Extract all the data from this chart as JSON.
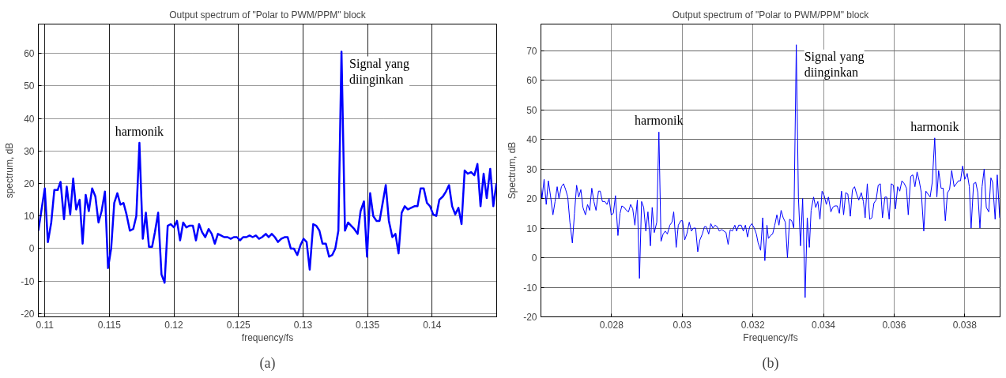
{
  "chart_data": [
    {
      "type": "line",
      "title": "Output spectrum of \"Polar to PWM/PPM\" block",
      "xlabel": "frequency/fs",
      "ylabel": "spectrum, dB",
      "xlim": [
        0.1095,
        0.145
      ],
      "ylim": [
        -21,
        69
      ],
      "xticks": [
        0.11,
        0.115,
        0.12,
        0.125,
        0.13,
        0.135,
        0.14
      ],
      "yticks": [
        -20,
        -10,
        0,
        10,
        20,
        30,
        40,
        50,
        60
      ],
      "grid": true,
      "marker": "none",
      "line_style": "solid",
      "annotations": [
        {
          "text": "harmonik",
          "x": 0.11733,
          "y": 32.5
        },
        {
          "text": "Signal yang\ndiinginkan",
          "x": 0.13298,
          "y": 60.5
        },
        "(a)"
      ],
      "series": [
        {
          "color": "#0000ff",
          "x": [
            0.1095,
            0.11,
            0.11024,
            0.1105,
            0.11074,
            0.111,
            0.11122,
            0.11149,
            0.1117,
            0.11197,
            0.1122,
            0.11243,
            0.1127,
            0.11293,
            0.11317,
            0.11341,
            0.11367,
            0.11392,
            0.11416,
            0.1144,
            0.11466,
            0.1149,
            0.11514,
            0.11538,
            0.11562,
            0.11586,
            0.1161,
            0.11633,
            0.11659,
            0.11685,
            0.11709,
            0.11733,
            0.11759,
            0.11783,
            0.11807,
            0.11831,
            0.11853,
            0.11878,
            0.11904,
            0.11928,
            0.11952,
            0.11976,
            0.12,
            0.12024,
            0.12048,
            0.12072,
            0.12096,
            0.1212,
            0.12147,
            0.12171,
            0.12195,
            0.12219,
            0.12243,
            0.12269,
            0.12293,
            0.12317,
            0.12341,
            0.12365,
            0.12389,
            0.12416,
            0.1244,
            0.12464,
            0.12488,
            0.12512,
            0.12536,
            0.12562,
            0.12586,
            0.1261,
            0.12635,
            0.12659,
            0.12683,
            0.12712,
            0.12734,
            0.12758,
            0.12782,
            0.12806,
            0.12831,
            0.12857,
            0.12881,
            0.12905,
            0.12929,
            0.12956,
            0.1298,
            0.13004,
            0.13028,
            0.13052,
            0.13079,
            0.13103,
            0.13127,
            0.13151,
            0.13177,
            0.13202,
            0.13226,
            0.1325,
            0.13274,
            0.13298,
            0.13325,
            0.13349,
            0.13373,
            0.13397,
            0.13423,
            0.13446,
            0.13472,
            0.13496,
            0.1352,
            0.13544,
            0.13569,
            0.13593,
            0.13617,
            0.13641,
            0.13665,
            0.13692,
            0.13716,
            0.1374,
            0.13764,
            0.13788,
            0.13812,
            0.13837,
            0.13863,
            0.13887,
            0.13911,
            0.13935,
            0.1396,
            0.13984,
            0.14008,
            0.14032,
            0.14056,
            0.14083,
            0.14107,
            0.14131,
            0.14155,
            0.14179,
            0.14204,
            0.14228,
            0.14252,
            0.14276,
            0.14302,
            0.14327,
            0.14351,
            0.14375,
            0.14399,
            0.14423,
            0.1445,
            0.14474,
            0.14498
          ],
          "values": [
            5.5,
            18.5,
            2,
            8,
            18,
            18,
            20.5,
            9,
            19,
            10.5,
            21.5,
            12,
            15,
            1.5,
            16.5,
            11.5,
            18.5,
            16,
            8,
            11.5,
            17.5,
            -6,
            0,
            14,
            17,
            13.5,
            14,
            10.5,
            5.5,
            6,
            10,
            32.5,
            3,
            11,
            0.5,
            0.5,
            5,
            11,
            -8,
            -10.5,
            7,
            7.5,
            6.5,
            8.5,
            2.5,
            8,
            6.5,
            7,
            7,
            2.5,
            7.5,
            5,
            3.5,
            6,
            4.5,
            1.5,
            4.5,
            4,
            3.5,
            3.5,
            3,
            3.5,
            3.5,
            2.5,
            3.5,
            3.5,
            4,
            3.5,
            4,
            3,
            3.5,
            4.5,
            3.5,
            4.5,
            3.5,
            2,
            3,
            3.5,
            3.5,
            0,
            0,
            -2,
            1,
            3,
            2,
            -6.5,
            7.5,
            7,
            5.5,
            1.5,
            1.5,
            -2.5,
            -2,
            0,
            5.5,
            60.5,
            5.5,
            8,
            7,
            6,
            4.5,
            11.5,
            14.5,
            -2.5,
            17,
            10,
            8.5,
            8.5,
            14,
            19.5,
            8.5,
            3.5,
            4.5,
            -1.5,
            11,
            13,
            12,
            12.5,
            13,
            13,
            18.5,
            18.5,
            14,
            13,
            10.5,
            10,
            15,
            16,
            17.5,
            19.5,
            13,
            10.5,
            12.5,
            7.5,
            24,
            23,
            23.5,
            22.5,
            26,
            13,
            23,
            15.5,
            24.5,
            13,
            20
          ]
        }
      ]
    },
    {
      "type": "line",
      "title": "Output spectrum of \"Polar to PWM/PPM\" block",
      "xlabel": "Frequency/fs",
      "ylabel": "Spectrum, dB",
      "xlim": [
        0.026,
        0.039
      ],
      "ylim": [
        -20,
        79
      ],
      "xticks": [
        0.028,
        0.03,
        0.032,
        0.034,
        0.036,
        0.038
      ],
      "yticks": [
        -20,
        -10,
        0,
        10,
        20,
        30,
        40,
        50,
        60,
        70
      ],
      "grid": true,
      "marker": "none",
      "line_style": "solid",
      "annotations": [
        {
          "text": "harmonik",
          "x": 0.02934,
          "y": 42.5
        },
        {
          "text": "Signal yang\ndiinginkan",
          "x": 0.03323,
          "y": 72
        },
        {
          "text": "harmonik",
          "x": 0.03715,
          "y": 40.5
        },
        "(b)"
      ],
      "series": [
        {
          "color": "#0000ff",
          "x": [
            0.026,
            0.02603,
            0.02609,
            0.02615,
            0.02621,
            0.02627,
            0.02634,
            0.0264,
            0.02646,
            0.02651,
            0.02658,
            0.02664,
            0.0267,
            0.02676,
            0.02682,
            0.02689,
            0.02695,
            0.02701,
            0.02707,
            0.02713,
            0.02719,
            0.02726,
            0.02732,
            0.02738,
            0.02744,
            0.0275,
            0.02756,
            0.02763,
            0.02768,
            0.02774,
            0.02781,
            0.02787,
            0.02793,
            0.02799,
            0.02805,
            0.02811,
            0.02818,
            0.02824,
            0.02829,
            0.02836,
            0.02842,
            0.02848,
            0.02854,
            0.0286,
            0.02866,
            0.02873,
            0.02879,
            0.02885,
            0.02891,
            0.02897,
            0.02903,
            0.0291,
            0.02915,
            0.02921,
            0.02928,
            0.02934,
            0.0294,
            0.02946,
            0.02952,
            0.02958,
            0.02965,
            0.02971,
            0.02976,
            0.02983,
            0.02989,
            0.02996,
            0.03001,
            0.03007,
            0.03013,
            0.0302,
            0.03026,
            0.03032,
            0.03038,
            0.03044,
            0.0305,
            0.03057,
            0.03063,
            0.03068,
            0.03075,
            0.03081,
            0.03087,
            0.03093,
            0.03099,
            0.03105,
            0.03112,
            0.03118,
            0.03124,
            0.0313,
            0.03136,
            0.03142,
            0.03149,
            0.03154,
            0.0316,
            0.03167,
            0.03173,
            0.03179,
            0.03185,
            0.03191,
            0.03197,
            0.03204,
            0.0321,
            0.03215,
            0.03222,
            0.03228,
            0.03234,
            0.0324,
            0.03244,
            0.0325,
            0.03256,
            0.03262,
            0.03268,
            0.03274,
            0.0328,
            0.03286,
            0.03292,
            0.03298,
            0.03304,
            0.0331,
            0.03316,
            0.03323,
            0.03329,
            0.03335,
            0.03341,
            0.03348,
            0.03354,
            0.0336,
            0.03365,
            0.03372,
            0.03378,
            0.03384,
            0.0339,
            0.03396,
            0.03402,
            0.03408,
            0.03414,
            0.03421,
            0.03426,
            0.03432,
            0.03439,
            0.03445,
            0.03451,
            0.03457,
            0.03463,
            0.03469,
            0.03476,
            0.03482,
            0.03488,
            0.03494,
            0.035,
            0.03507,
            0.03513,
            0.03518,
            0.03524,
            0.03531,
            0.03537,
            0.03543,
            0.03549,
            0.03555,
            0.03561,
            0.03567,
            0.03574,
            0.03579,
            0.03586,
            0.03592,
            0.03598,
            0.03604,
            0.0361,
            0.03616,
            0.03622,
            0.03629,
            0.03635,
            0.0364,
            0.03647,
            0.03653,
            0.03659,
            0.03665,
            0.03671,
            0.03677,
            0.03684,
            0.0369,
            0.03696,
            0.03702,
            0.03708,
            0.03715,
            0.03721,
            0.03726,
            0.03733,
            0.03739,
            0.03745,
            0.03751,
            0.03757,
            0.03763,
            0.0377,
            0.03776,
            0.03782,
            0.03788,
            0.03794,
            0.038,
            0.03807,
            0.03813,
            0.03818,
            0.03825,
            0.03831,
            0.03837,
            0.03843,
            0.03849,
            0.03855,
            0.03861,
            0.03868,
            0.03874,
            0.03879,
            0.03886,
            0.03892,
            0.03899
          ],
          "values": [
            24,
            20,
            26.5,
            18,
            26,
            21,
            14.5,
            19,
            24,
            20,
            24,
            25,
            23,
            20.5,
            12,
            5,
            15,
            24.5,
            20.5,
            23,
            17,
            14.5,
            18,
            16,
            23.5,
            19,
            16,
            22.5,
            22.5,
            19,
            19,
            18,
            20,
            14.5,
            15,
            21,
            7.5,
            15,
            17.5,
            17,
            16,
            15.5,
            18,
            16.5,
            11,
            19.5,
            -7,
            19,
            17,
            9,
            15.5,
            4,
            17,
            8.5,
            12,
            42.5,
            5.5,
            8,
            9,
            8,
            11,
            12,
            15.5,
            3.5,
            11,
            12.5,
            12.5,
            6,
            8,
            12,
            9,
            10,
            10,
            2,
            6,
            8,
            10.5,
            10.5,
            8,
            11.5,
            10,
            11,
            10.5,
            9,
            9.5,
            9,
            8.5,
            4.5,
            9.5,
            9,
            11,
            9,
            11,
            11,
            9,
            11,
            7,
            10.5,
            11.5,
            10,
            8,
            5,
            2.5,
            13.5,
            -1,
            11,
            6.5,
            7.5,
            8,
            11,
            14.5,
            11,
            16,
            13.5,
            12,
            0,
            13,
            12.5,
            10,
            72,
            20.5,
            4,
            20,
            -13.5,
            13.5,
            3.5,
            16,
            20.5,
            17,
            19,
            13,
            22.5,
            21,
            18,
            20.5,
            15.5,
            17,
            17.5,
            17.5,
            15,
            22.5,
            14.5,
            22,
            21.5,
            14,
            23,
            24,
            21.5,
            19.5,
            22,
            19,
            13.5,
            25,
            13,
            13.5,
            18.5,
            19.5,
            24.5,
            25,
            13.5,
            20.5,
            20.5,
            13,
            25,
            24.5,
            16.5,
            24,
            22.5,
            26,
            25,
            23.5,
            14.5,
            27.5,
            28,
            24,
            29,
            26,
            22,
            9,
            22.5,
            21.5,
            20.5,
            25.5,
            40.5,
            20.5,
            29.5,
            23.5,
            23.5,
            12.5,
            22,
            23,
            29.5,
            24,
            25,
            26,
            26,
            31,
            26.5,
            28.5,
            24,
            10,
            25,
            25.5,
            22,
            10,
            24,
            30,
            17,
            15.5,
            27,
            25.5,
            13,
            28,
            13.5
          ]
        }
      ]
    }
  ]
}
